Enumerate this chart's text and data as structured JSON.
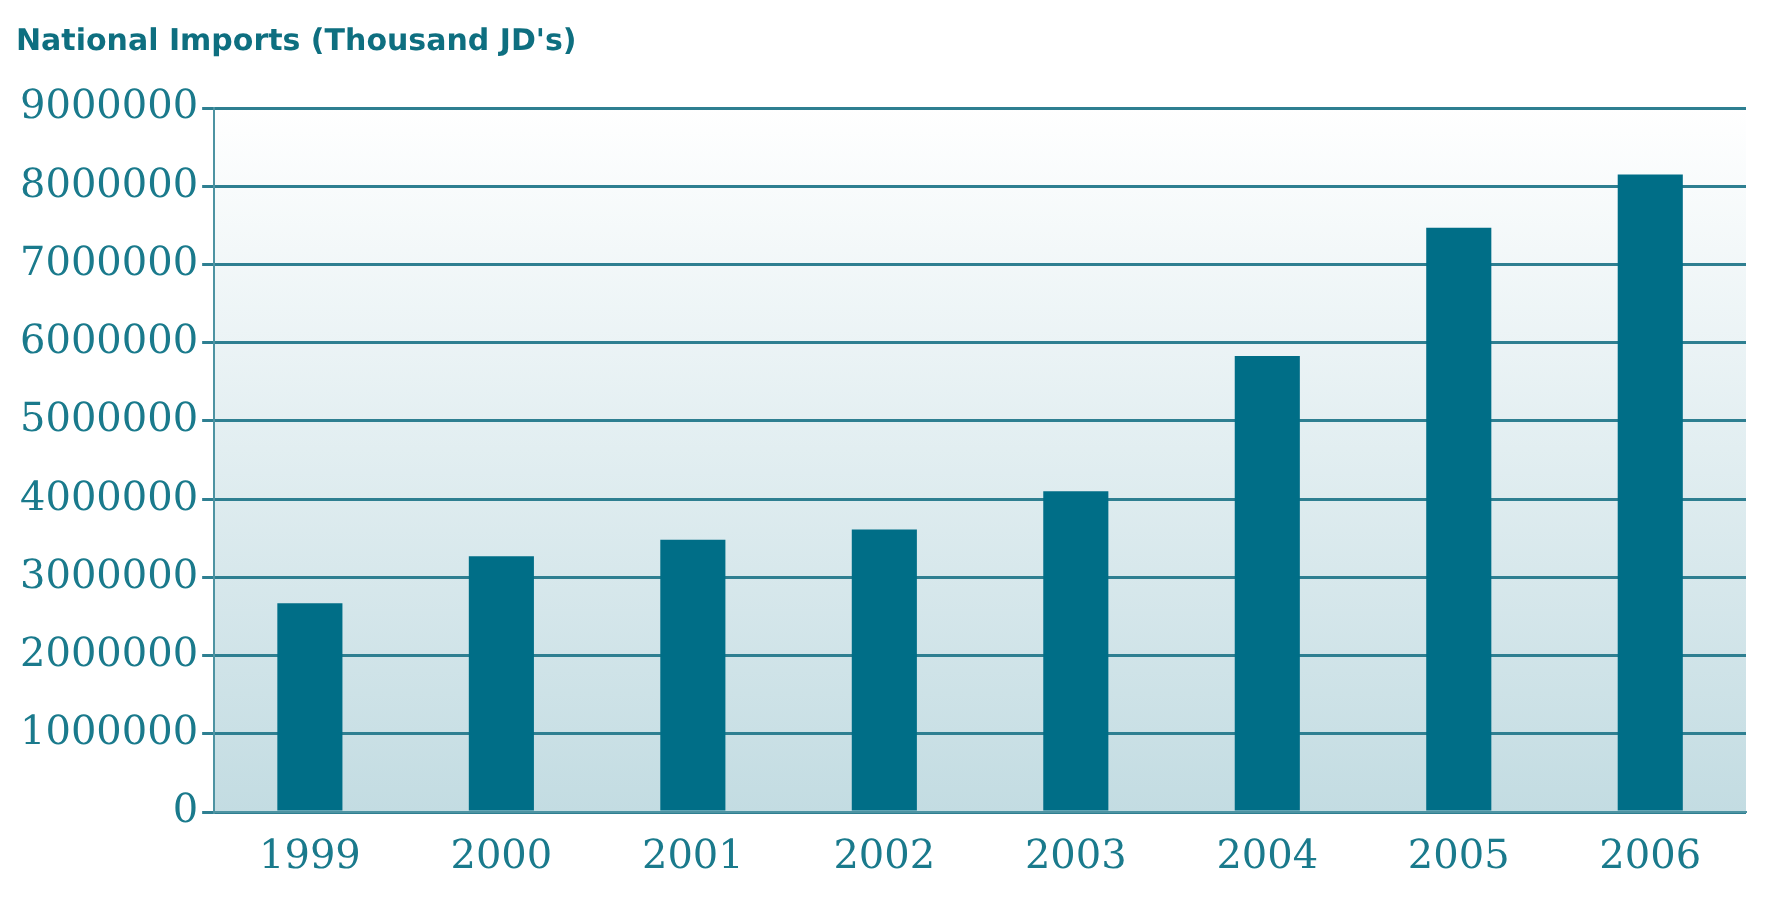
{
  "chart_data": {
    "type": "bar",
    "title": "National Imports (Thousand JD's)",
    "categories": [
      "1999",
      "2000",
      "2001",
      "2002",
      "2003",
      "2004",
      "2005",
      "2006"
    ],
    "values": [
      2670000,
      3270000,
      3480000,
      3610000,
      4100000,
      5830000,
      7470000,
      8150000
    ],
    "color": "#006e87",
    "ylim": [
      0,
      9000000
    ],
    "yticks": [
      0,
      1000000,
      2000000,
      3000000,
      4000000,
      5000000,
      6000000,
      7000000,
      8000000,
      9000000
    ],
    "grid": "y",
    "legend": false
  }
}
